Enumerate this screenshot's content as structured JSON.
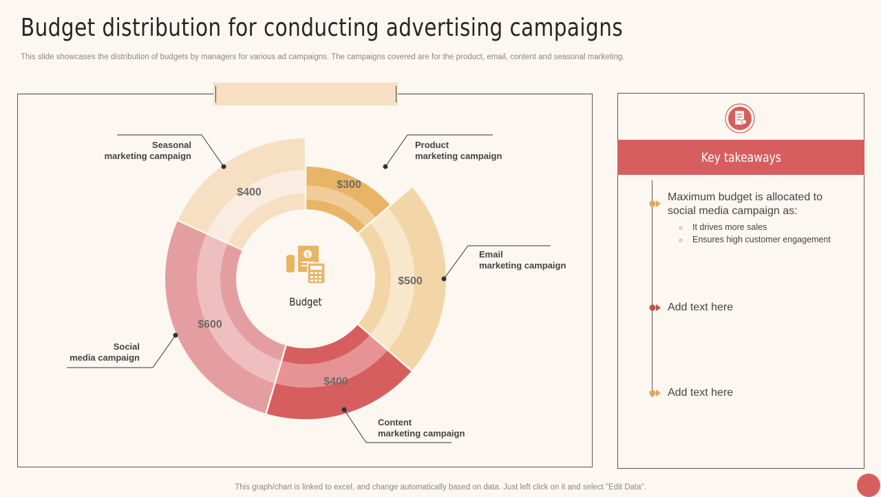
{
  "page": {
    "title": "Budget distribution for conducting advertising campaigns",
    "subtitle": "This slide showcases the distribution of budgets by managers for various ad campaigns. The campaigns covered are for the product, email, content and seasonal marketing.",
    "footer": "This graph/chart is linked to excel,  and change automatically based on data. Just left click on it and select \"Edit Data\"."
  },
  "chart_data": {
    "type": "pie",
    "variant": "donut",
    "center_label": "Budget",
    "center_icon": "budget-calculator-icon",
    "slices": [
      {
        "label_line1": "Product",
        "label_line2": "marketing campaign",
        "value": 300,
        "value_label": "$300",
        "outer": "#e8b466",
        "mid": "#f0cd98",
        "inner": "#e8b466"
      },
      {
        "label_line1": "Email",
        "label_line2": "marketing campaign",
        "value": 500,
        "value_label": "$500",
        "outer": "#f3d6a7",
        "mid": "#f8e7cb",
        "inner": "#f3d6a7"
      },
      {
        "label_line1": "Content",
        "label_line2": "marketing campaign",
        "value": 400,
        "value_label": "$400",
        "outer": "#d65e5e",
        "mid": "#e79395",
        "inner": "#d65e5e"
      },
      {
        "label_line1": "Social",
        "label_line2": "media campaign",
        "value": 600,
        "value_label": "$600",
        "outer": "#e59ea0",
        "mid": "#efbfc0",
        "inner": "#e59ea0"
      },
      {
        "label_line1": "Seasonal",
        "label_line2": "marketing campaign",
        "value": 400,
        "value_label": "$400",
        "outer": "#f6dfc2",
        "mid": "#faece0",
        "inner": "#f6dfc2"
      }
    ]
  },
  "takeaways": {
    "header": "Key takeaways",
    "header_icon": "document-checklist-icon",
    "items": [
      {
        "text": "Maximum budget is allocated to social media campaign as:",
        "marker_color": "#e0a65a",
        "sub": [
          "It drives  more sales",
          "Ensures high  customer engagement"
        ]
      },
      {
        "text": "Add text here",
        "marker_color": "#c0504d",
        "sub": []
      },
      {
        "text": "Add text here",
        "marker_color": "#e0a65a",
        "sub": []
      }
    ]
  },
  "colors": {
    "accent": "#d65e5e",
    "background": "#fcf7f1",
    "tab": "#f6dfc2"
  }
}
